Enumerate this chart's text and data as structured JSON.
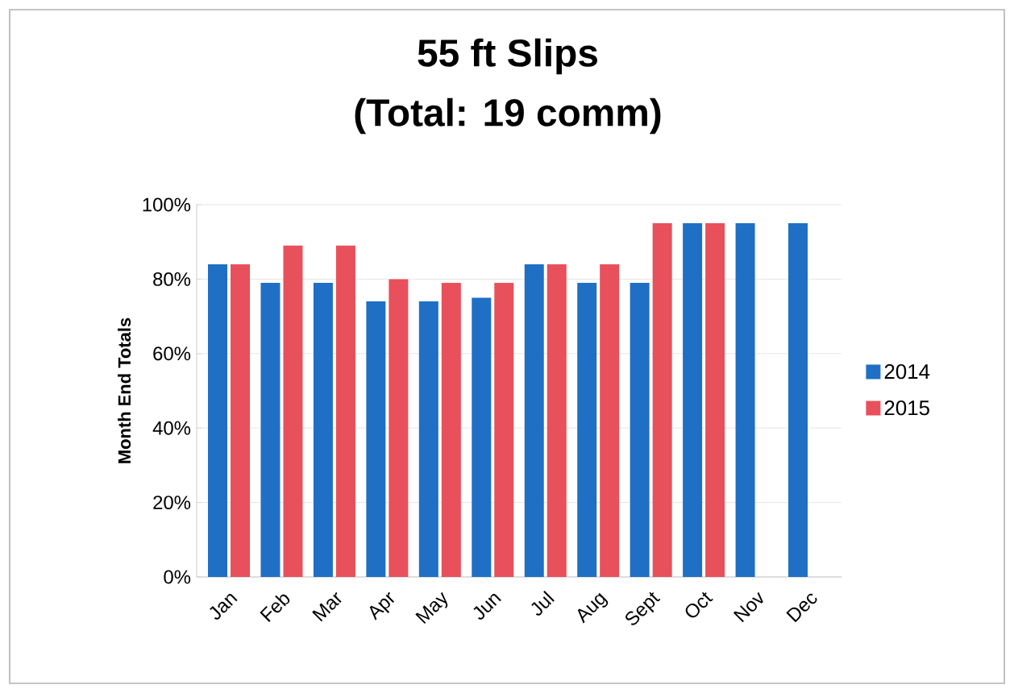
{
  "chart_data": {
    "type": "bar",
    "title": "55 ft Slips",
    "subtitle": "(Total: 19 comm)",
    "ylabel": "Month End Totals",
    "categories": [
      "Jan",
      "Feb",
      "Mar",
      "Apr",
      "May",
      "Jun",
      "Jul",
      "Aug",
      "Sept",
      "Oct",
      "Nov",
      "Dec"
    ],
    "series": [
      {
        "name": "2014",
        "color": "#1f6fc5",
        "values": [
          84,
          79,
          79,
          74,
          74,
          75,
          84,
          79,
          79,
          95,
          95,
          95
        ]
      },
      {
        "name": "2015",
        "color": "#e8505b",
        "values": [
          84,
          89,
          89,
          80,
          79,
          79,
          84,
          84,
          95,
          95,
          null,
          null
        ]
      }
    ],
    "ylim": [
      0,
      100
    ],
    "yticks": [
      {
        "value": 0,
        "label": "0%"
      },
      {
        "value": 20,
        "label": "20%"
      },
      {
        "value": 40,
        "label": "40%"
      },
      {
        "value": 60,
        "label": "60%"
      },
      {
        "value": 80,
        "label": "80%"
      },
      {
        "value": 100,
        "label": "100%"
      }
    ],
    "grid": "y",
    "legend": "right"
  }
}
